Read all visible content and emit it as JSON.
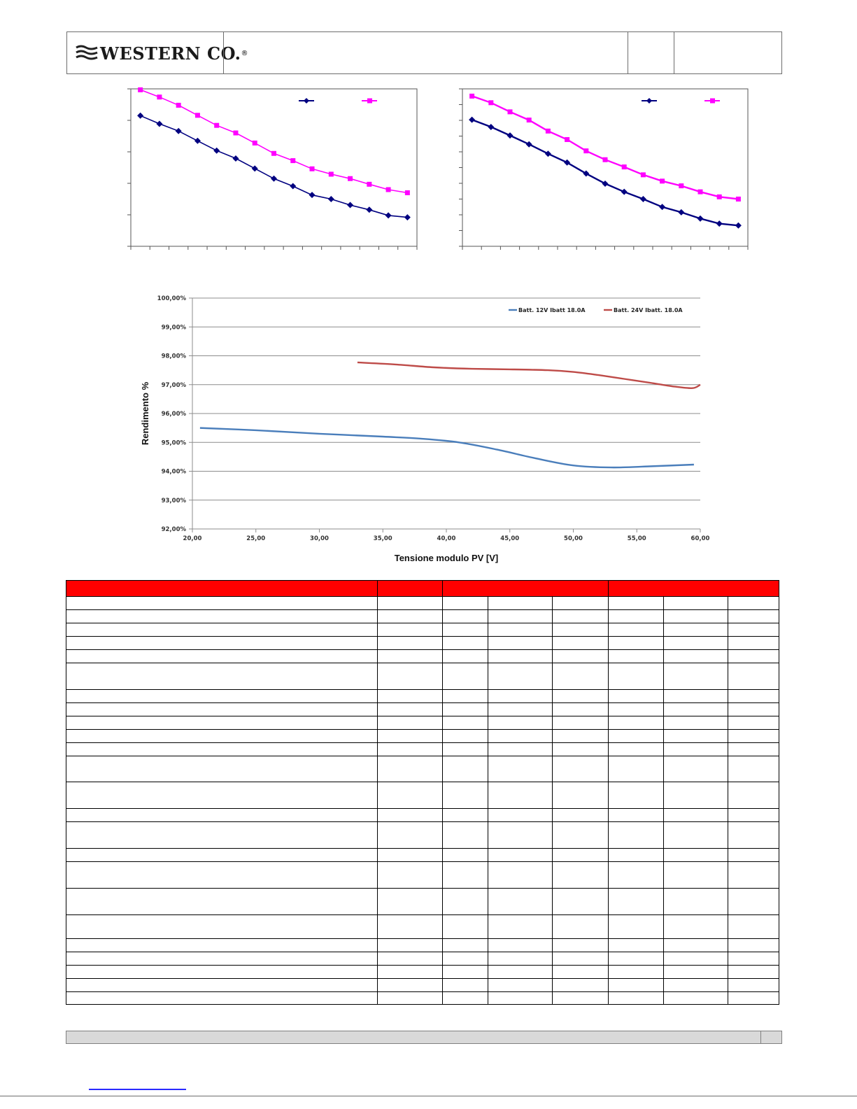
{
  "header": {
    "company": "WESTERN CO.",
    "registered_mark": "®"
  },
  "efficiency_chart": {
    "y_title": "Rendimento %",
    "x_title": "Tensione modulo PV [V]"
  },
  "chart_data": [
    {
      "type": "line",
      "x": [
        1,
        2,
        3,
        4,
        5,
        6,
        7,
        8,
        9,
        10,
        11,
        12,
        13,
        14,
        15
      ],
      "series": [
        {
          "values": [
            82.5,
            79.9,
            77.6,
            74.5,
            71.4,
            68.9,
            65.7,
            62.5,
            60.1,
            57.3,
            56.0,
            54.1,
            52.6,
            50.8,
            50.2
          ],
          "color": "#000080",
          "marker": "diamond"
        },
        {
          "values": [
            90.7,
            88.4,
            85.8,
            82.6,
            79.4,
            77.0,
            73.8,
            70.5,
            68.2,
            65.6,
            63.9,
            62.5,
            60.7,
            59.0,
            58.0
          ],
          "color": "#ff00ff",
          "marker": "square"
        }
      ],
      "ylim": [
        41,
        91
      ],
      "grid": false,
      "legend": "top-right"
    },
    {
      "type": "line",
      "x": [
        1,
        2,
        3,
        4,
        5,
        6,
        7,
        8,
        9,
        10,
        11,
        12,
        13,
        14,
        15
      ],
      "series": [
        {
          "values": [
            81.2,
            78.9,
            76.2,
            73.4,
            70.4,
            67.6,
            64.1,
            60.9,
            58.3,
            56.0,
            53.5,
            51.8,
            49.8,
            48.2,
            47.6
          ],
          "color": "#000080",
          "marker": "diamond"
        },
        {
          "values": [
            88.7,
            86.6,
            83.7,
            81.1,
            77.6,
            74.9,
            71.3,
            68.5,
            66.2,
            63.7,
            61.7,
            60.2,
            58.3,
            56.7,
            56.0
          ],
          "color": "#ff00ff",
          "marker": "square"
        }
      ],
      "ylim": [
        41,
        91
      ],
      "grid": false,
      "legend": "top-right"
    },
    {
      "type": "line",
      "ylabel": "Rendimento %",
      "xlabel": "Tensione modulo PV [V]",
      "xlim": [
        20,
        60
      ],
      "ylim": [
        92,
        100
      ],
      "x_ticks": [
        "20,00",
        "25,00",
        "30,00",
        "35,00",
        "40,00",
        "45,00",
        "50,00",
        "55,00",
        "60,00"
      ],
      "y_ticks": [
        "100,00%",
        "99,00%",
        "98,00%",
        "97,00%",
        "96,00%",
        "95,00%",
        "94,00%",
        "93,00%",
        "92,00%"
      ],
      "grid": true,
      "legend": "top-right",
      "series": [
        {
          "name": "Batt. 12V Ibatt 18.0A",
          "color": "#4a7ebb",
          "x": [
            20.6,
            25,
            30,
            35,
            38,
            41,
            44,
            47,
            50,
            53,
            56,
            59.5
          ],
          "values": [
            95.5,
            95.42,
            95.3,
            95.2,
            95.13,
            95.0,
            94.75,
            94.45,
            94.2,
            94.13,
            94.17,
            94.23
          ]
        },
        {
          "name": "Batt. 24V Ibatt. 18.0A",
          "color": "#be4b48",
          "x": [
            33,
            36,
            39,
            42,
            45,
            48,
            50,
            52,
            54,
            56,
            58,
            59.4,
            60
          ],
          "values": [
            97.77,
            97.7,
            97.6,
            97.55,
            97.53,
            97.5,
            97.44,
            97.33,
            97.2,
            97.07,
            96.93,
            96.88,
            97.0
          ]
        }
      ]
    }
  ],
  "table": {
    "column_widths": [
      445,
      93,
      65,
      92,
      80,
      79,
      92,
      73
    ],
    "header_merges": [
      {
        "cells": [
          {
            "span": 1
          },
          {
            "span": 1
          },
          {
            "span": 3
          },
          {
            "span": 3
          }
        ]
      }
    ],
    "row_heights": [
      19,
      19,
      19,
      19,
      19,
      38,
      19,
      19,
      19,
      19,
      19,
      37,
      38,
      19,
      38,
      19,
      38,
      38,
      34,
      19,
      19,
      19,
      19,
      18
    ]
  }
}
